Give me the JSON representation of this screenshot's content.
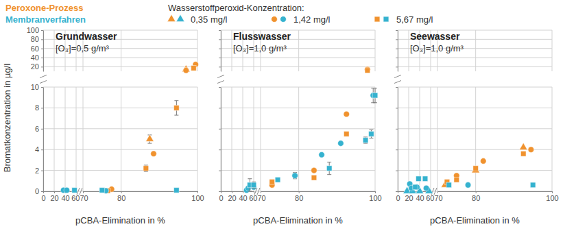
{
  "chart_data": {
    "type": "scatter",
    "legend": "top",
    "grid": true,
    "methods": [
      {
        "name": "Peroxone-Prozess",
        "color": "#f0922e"
      },
      {
        "name": "Membranverfahren",
        "color": "#35b2cf"
      }
    ],
    "concentration_title": "Wasserstoffperoxid-Konzentration:",
    "concentrations": [
      {
        "name": "0,35 mg/l",
        "marker": "triangle"
      },
      {
        "name": "1,42 mg/l",
        "marker": "circle"
      },
      {
        "name": "5,67 mg/l",
        "marker": "square"
      }
    ],
    "ylabel": "Bromatkonzentration in µg/l",
    "ylim": [
      0,
      100
    ],
    "y_break": 10,
    "yticks": [
      0,
      2,
      4,
      6,
      8,
      10,
      20,
      40,
      60,
      80,
      100
    ],
    "panels": [
      {
        "title": "Grundwasser",
        "subtitle": "[O₃]=0,5 g/m³",
        "xlabel": "pCBA-Elimination in %",
        "xlim": [
          0,
          100
        ],
        "x_break": [
          60,
          70
        ],
        "xticks": [
          0,
          20,
          40,
          60,
          70,
          80,
          100
        ],
        "series": [
          {
            "method": "Peroxone-Prozess",
            "concentration": "0,35 mg/l",
            "x": [
              87.5,
              97
            ],
            "y": [
              5.0,
              14
            ],
            "errors": [
              0.4,
              null
            ]
          },
          {
            "method": "Peroxone-Prozess",
            "concentration": "1,42 mg/l",
            "x": [
              77.5,
              88.5,
              97,
              99.5
            ],
            "y": [
              0.2,
              3.6,
              12,
              25
            ],
            "errors": [
              null,
              null,
              null,
              null
            ]
          },
          {
            "method": "Peroxone-Prozess",
            "concentration": "5,67 mg/l",
            "x": [
              76.5,
              86.5,
              94.5,
              99
            ],
            "y": [
              0.05,
              2.2,
              8.0,
              17
            ],
            "errors": [
              null,
              0.3,
              0.7,
              null
            ]
          },
          {
            "method": "Membranverfahren",
            "concentration": "0,35 mg/l",
            "x": [],
            "y": [],
            "errors": []
          },
          {
            "method": "Membranverfahren",
            "concentration": "1,42 mg/l",
            "x": [
              37,
              43,
              76
            ],
            "y": [
              0.1,
              0.1,
              0.05
            ],
            "errors": [
              null,
              null,
              null
            ]
          },
          {
            "method": "Membranverfahren",
            "concentration": "5,67 mg/l",
            "x": [
              57,
              75,
              94.5
            ],
            "y": [
              0.1,
              0.1,
              0.1
            ],
            "errors": [
              null,
              null,
              null
            ]
          }
        ]
      },
      {
        "title": "Flusswasser",
        "subtitle": "[O₃]=1,0 g/m³",
        "xlabel": "pCBA-Elimination in %",
        "xlim": [
          0,
          100
        ],
        "x_break": [
          60,
          70
        ],
        "xticks": [
          0,
          20,
          40,
          60,
          70,
          80,
          100
        ],
        "tick_labels": "x",
        "series": [
          {
            "method": "Peroxone-Prozess",
            "concentration": "0,35 mg/l",
            "x": [],
            "y": [],
            "errors": []
          },
          {
            "method": "Peroxone-Prozess",
            "concentration": "1,42 mg/l",
            "x": [
              73,
              84,
              92.5,
              98
            ],
            "y": [
              0.6,
              2.0,
              7.4,
              14
            ],
            "errors": [
              null,
              null,
              null,
              null
            ]
          },
          {
            "method": "Peroxone-Prozess",
            "concentration": "5,67 mg/l",
            "x": [
              73,
              84,
              92.5,
              98
            ],
            "y": [
              0.9,
              1.3,
              5.5,
              12
            ],
            "errors": [
              null,
              null,
              null,
              null
            ]
          },
          {
            "method": "Membranverfahren",
            "concentration": "0,35 mg/l",
            "x": [],
            "y": [],
            "errors": []
          },
          {
            "method": "Membranverfahren",
            "concentration": "1,42 mg/l",
            "x": [
              47,
              50,
              60,
              79,
              86,
              91,
              99.5
            ],
            "y": [
              0.1,
              0.3,
              0.4,
              1.5,
              3.5,
              4.6,
              9.2
            ],
            "errors": [
              null,
              null,
              null,
              0.3,
              null,
              null,
              0.7
            ]
          },
          {
            "method": "Membranverfahren",
            "concentration": "5,67 mg/l",
            "x": [
              53,
              60,
              74.5,
              88,
              97.5,
              99,
              100
            ],
            "y": [
              0.6,
              0.6,
              1.1,
              2.2,
              4.9,
              5.5,
              9.2
            ],
            "errors": [
              0.6,
              0.3,
              0.15,
              0.6,
              0.3,
              0.4,
              0.7
            ]
          }
        ]
      },
      {
        "title": "Seewasser",
        "subtitle": "[O₃]=1,0 g/m³",
        "xlabel": "pCBA-Elimination in %",
        "xlim": [
          0,
          100
        ],
        "x_break": [
          60,
          70
        ],
        "xticks": [
          0,
          20,
          40,
          60,
          70,
          80,
          100
        ],
        "tick_labels": "x",
        "series": [
          {
            "method": "Peroxone-Prozess",
            "concentration": "0,35 mg/l",
            "x": [
              72,
              80,
              92.5
            ],
            "y": [
              0.6,
              2.0,
              4.2
            ],
            "errors": [
              null,
              null,
              null
            ]
          },
          {
            "method": "Peroxone-Prozess",
            "concentration": "1,42 mg/l",
            "x": [
              75,
              82,
              94.5
            ],
            "y": [
              1.5,
              2.9,
              4.0
            ],
            "errors": [
              null,
              null,
              null
            ]
          },
          {
            "method": "Peroxone-Prozess",
            "concentration": "5,67 mg/l",
            "x": [
              72.5,
              75,
              80,
              92.5
            ],
            "y": [
              0.9,
              1.1,
              2.2,
              3.6
            ],
            "errors": [
              null,
              null,
              null,
              null
            ]
          },
          {
            "method": "Membranverfahren",
            "concentration": "0,35 mg/l",
            "x": [
              17,
              27,
              40,
              57
            ],
            "y": [
              0,
              0,
              0,
              0
            ],
            "errors": [
              null,
              null,
              null,
              null
            ]
          },
          {
            "method": "Membranverfahren",
            "concentration": "1,42 mg/l",
            "x": [
              22,
              25,
              35,
              52,
              78
            ],
            "y": [
              0.7,
              0.3,
              0.4,
              0.3,
              0.6
            ],
            "errors": [
              null,
              null,
              null,
              null,
              null
            ]
          },
          {
            "method": "Membranverfahren",
            "concentration": "5,67 mg/l",
            "x": [
              32,
              38,
              50,
              73,
              95
            ],
            "y": [
              0.4,
              1.2,
              1.2,
              0.6,
              0.6
            ],
            "errors": [
              null,
              null,
              null,
              null,
              null
            ]
          }
        ]
      }
    ]
  }
}
